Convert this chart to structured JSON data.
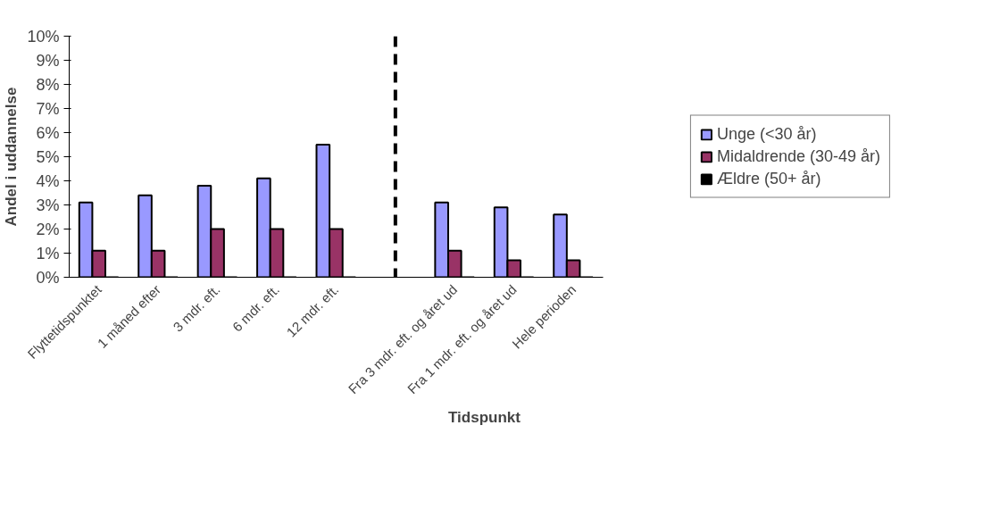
{
  "chart_data": {
    "type": "bar",
    "xlabel": "Tidspunkt",
    "ylabel": "Andel i uddannelse",
    "categories": [
      "Flyttetidspunktet",
      "1 måned efter",
      "3 mdr. eft.",
      "6 mdr. eft.",
      "12 mdr. eft.",
      null,
      "Fra 3 mdr. eft. og året ud",
      "Fra 1 mdr. eft. og året ud",
      "Hele perioden"
    ],
    "series": [
      {
        "name": "Unge (<30 år)",
        "color": "#9999ff",
        "values": [
          3.1,
          3.4,
          3.8,
          4.1,
          5.5,
          null,
          3.1,
          2.9,
          2.6
        ]
      },
      {
        "name": "Midaldrende (30-49 år)",
        "color": "#993366",
        "values": [
          1.1,
          1.1,
          2.0,
          2.0,
          2.0,
          null,
          1.1,
          0.7,
          0.7
        ]
      },
      {
        "name": "Ældre (50+ år)",
        "color": "#000000",
        "values": [
          0,
          0,
          0,
          0,
          0,
          null,
          0,
          0,
          0
        ]
      }
    ],
    "ylim": [
      0,
      10
    ],
    "yticks": [
      {
        "value": 0,
        "label": "0%"
      },
      {
        "value": 1,
        "label": "1%"
      },
      {
        "value": 2,
        "label": "2%"
      },
      {
        "value": 3,
        "label": "3%"
      },
      {
        "value": 4,
        "label": "4%"
      },
      {
        "value": 5,
        "label": "5%"
      },
      {
        "value": 6,
        "label": "6%"
      },
      {
        "value": 7,
        "label": "7%"
      },
      {
        "value": 8,
        "label": "8%"
      },
      {
        "value": 9,
        "label": "9%"
      },
      {
        "value": 10,
        "label": "10%"
      }
    ],
    "legend": "right"
  }
}
